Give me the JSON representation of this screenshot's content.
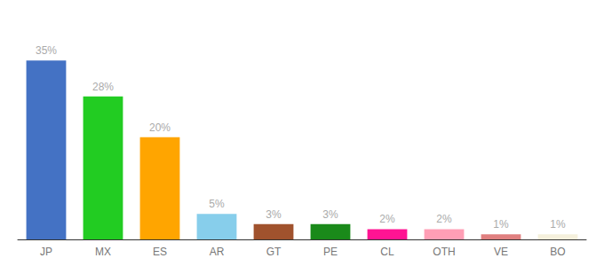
{
  "chart_data": {
    "type": "bar",
    "categories": [
      "JP",
      "MX",
      "ES",
      "AR",
      "GT",
      "PE",
      "CL",
      "OTH",
      "VE",
      "BO"
    ],
    "values": [
      35,
      28,
      20,
      5,
      3,
      3,
      2,
      2,
      1,
      1
    ],
    "value_labels": [
      "35%",
      "28%",
      "20%",
      "5%",
      "3%",
      "3%",
      "2%",
      "2%",
      "1%",
      "1%"
    ],
    "colors": [
      "#4472c4",
      "#22cc22",
      "#ffa500",
      "#87ceeb",
      "#a0522d",
      "#1a8a1a",
      "#ff1493",
      "#ff9eb5",
      "#e08080",
      "#f5f0dc"
    ],
    "ylim": [
      0,
      42
    ],
    "grid": false,
    "data_labels": true,
    "tick_labels": "x"
  }
}
